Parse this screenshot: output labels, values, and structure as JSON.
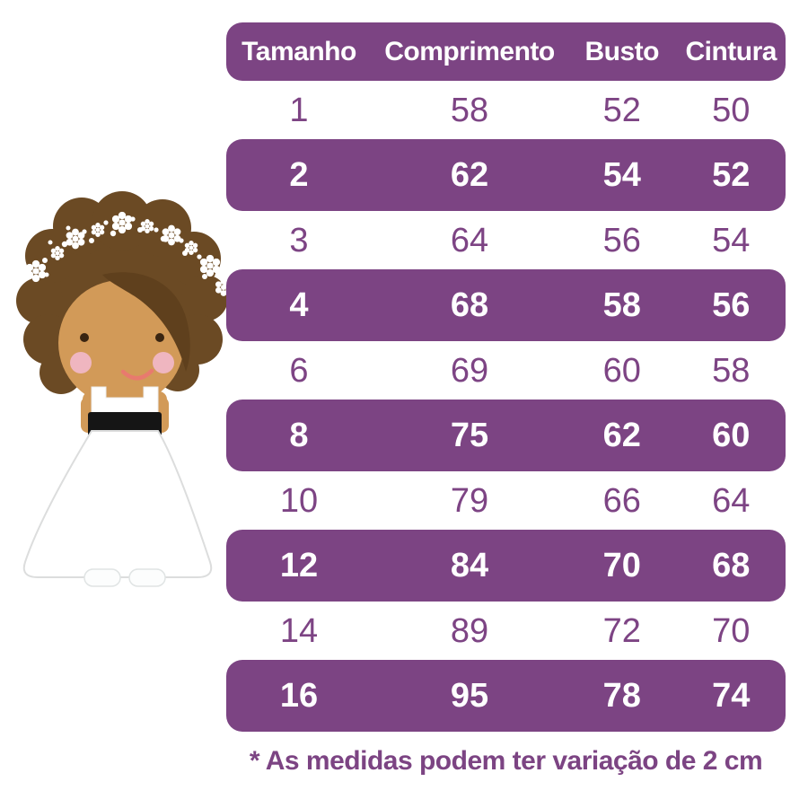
{
  "colors": {
    "purple": "#7c4483",
    "row_text": "#7d4484",
    "hair": "#6b4a24",
    "bangs": "#5f401d",
    "skin": "#d29a58",
    "cheek": "#efb6c0",
    "mouth": "#e87a6e",
    "sash": "#151515"
  },
  "illustration": {
    "label": "flower-girl"
  },
  "chart_data": {
    "type": "table",
    "title": "",
    "columns": [
      "Tamanho",
      "Comprimento",
      "Busto",
      "Cintura"
    ],
    "rows": [
      {
        "values": [
          "1",
          "58",
          "52",
          "50"
        ],
        "highlighted": false
      },
      {
        "values": [
          "2",
          "62",
          "54",
          "52"
        ],
        "highlighted": true
      },
      {
        "values": [
          "3",
          "64",
          "56",
          "54"
        ],
        "highlighted": false
      },
      {
        "values": [
          "4",
          "68",
          "58",
          "56"
        ],
        "highlighted": true
      },
      {
        "values": [
          "6",
          "69",
          "60",
          "58"
        ],
        "highlighted": false
      },
      {
        "values": [
          "8",
          "75",
          "62",
          "60"
        ],
        "highlighted": true
      },
      {
        "values": [
          "10",
          "79",
          "66",
          "64"
        ],
        "highlighted": false
      },
      {
        "values": [
          "12",
          "84",
          "70",
          "68"
        ],
        "highlighted": true
      },
      {
        "values": [
          "14",
          "89",
          "72",
          "70"
        ],
        "highlighted": false
      },
      {
        "values": [
          "16",
          "95",
          "78",
          "74"
        ],
        "highlighted": true
      }
    ],
    "footnote": "* As medidas podem ter variação de 2 cm",
    "legend_position": "none",
    "grid": false
  }
}
